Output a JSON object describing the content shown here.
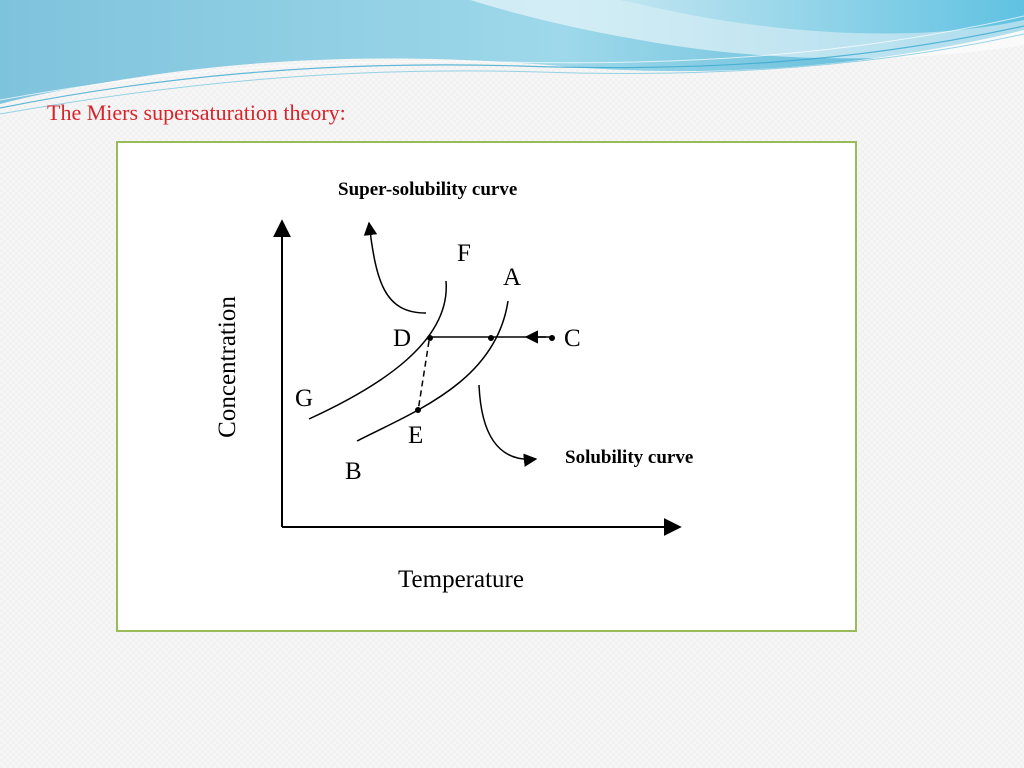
{
  "slide": {
    "title": "The Miers supersaturation theory:",
    "accent_color": "#d8232a",
    "frame_color": "#9bbb59"
  },
  "diagram": {
    "annotations": {
      "super_solubility": "Super-solubility curve",
      "solubility": "Solubility curve"
    },
    "axes": {
      "y_label": "Concentration",
      "x_label": "Temperature"
    },
    "points": {
      "F": "F",
      "A": "A",
      "D": "D",
      "C": "C",
      "G": "G",
      "E": "E",
      "B": "B"
    }
  }
}
